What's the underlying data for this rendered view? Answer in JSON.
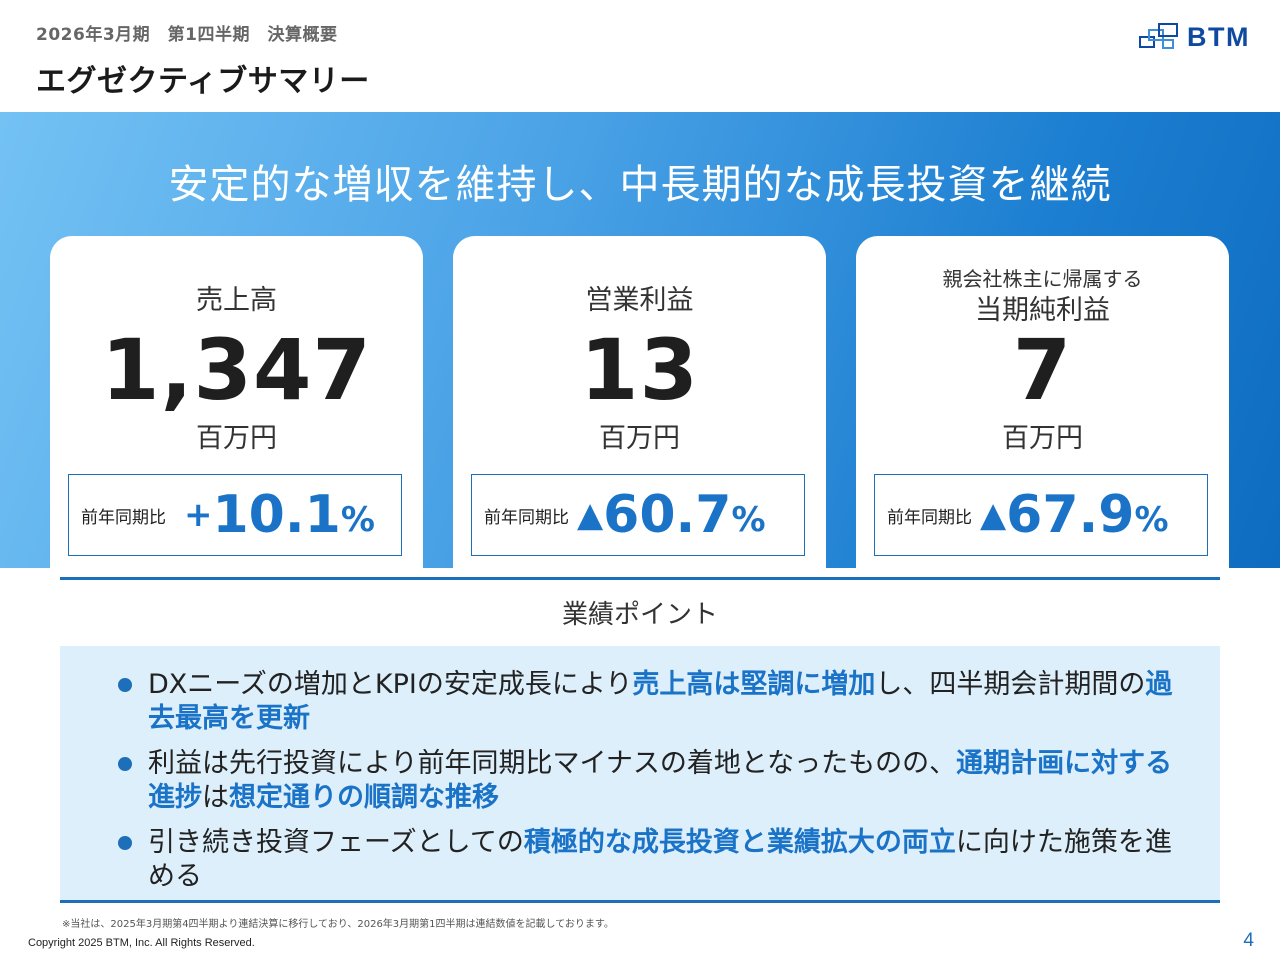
{
  "header": {
    "subtitle": "2026年3月期　第1四半期　決算概要",
    "title": "エグゼクティブサマリー",
    "logo_text": "BTM"
  },
  "banner": {
    "headline": "安定的な増収を維持し、中長期的な成長投資を継続"
  },
  "cards": [
    {
      "label": "売上高",
      "value": "1,347",
      "unit": "百万円",
      "yoy_label": "前年同期比",
      "yoy_sign": "+",
      "yoy_value": "10.1",
      "yoy_pct": "%"
    },
    {
      "label": "営業利益",
      "value": "13",
      "unit": "百万円",
      "yoy_label": "前年同期比",
      "yoy_sign": "▲",
      "yoy_value": "60.7",
      "yoy_pct": "%"
    },
    {
      "label_small": "親会社株主に帰属する",
      "label": "当期純利益",
      "value": "7",
      "unit": "百万円",
      "yoy_label": "前年同期比",
      "yoy_sign": "▲",
      "yoy_value": "67.9",
      "yoy_pct": "%"
    }
  ],
  "points": {
    "title": "業績ポイント",
    "items": [
      {
        "t1": "DXニーズの増加とKPIの安定成長により",
        "h1": "売上高は堅調に増加",
        "t2": "し、四半期会計期間の",
        "h2": "過去最高を更新",
        "t3": "",
        "h3": "",
        "t4": ""
      },
      {
        "t1": "利益は先行投資により前年同期比マイナスの着地となったものの、",
        "h1": "通期計画に対する進捗",
        "t2": "は",
        "h2": "想定通りの順調な推移",
        "t3": "",
        "h3": "",
        "t4": ""
      },
      {
        "t1": "引き続き投資フェーズとしての",
        "h1": "積極的な成長投資と業績拡大の両立",
        "t2": "に向けた施策を進める",
        "h2": "",
        "t3": "",
        "h3": "",
        "t4": ""
      }
    ]
  },
  "footer": {
    "footnote": "※当社は、2025年3月期第4四半期より連結決算に移行しており、2026年3月期第1四半期は連結数値を記載しております。",
    "copyright": "Copyright 2025 BTM, Inc. All Rights Reserved.",
    "page_number": "4"
  },
  "colors": {
    "accent": "#1a73c7",
    "banner_start": "#74c2f4",
    "banner_end": "#0e6cc0",
    "points_bg": "#ddeffb"
  }
}
